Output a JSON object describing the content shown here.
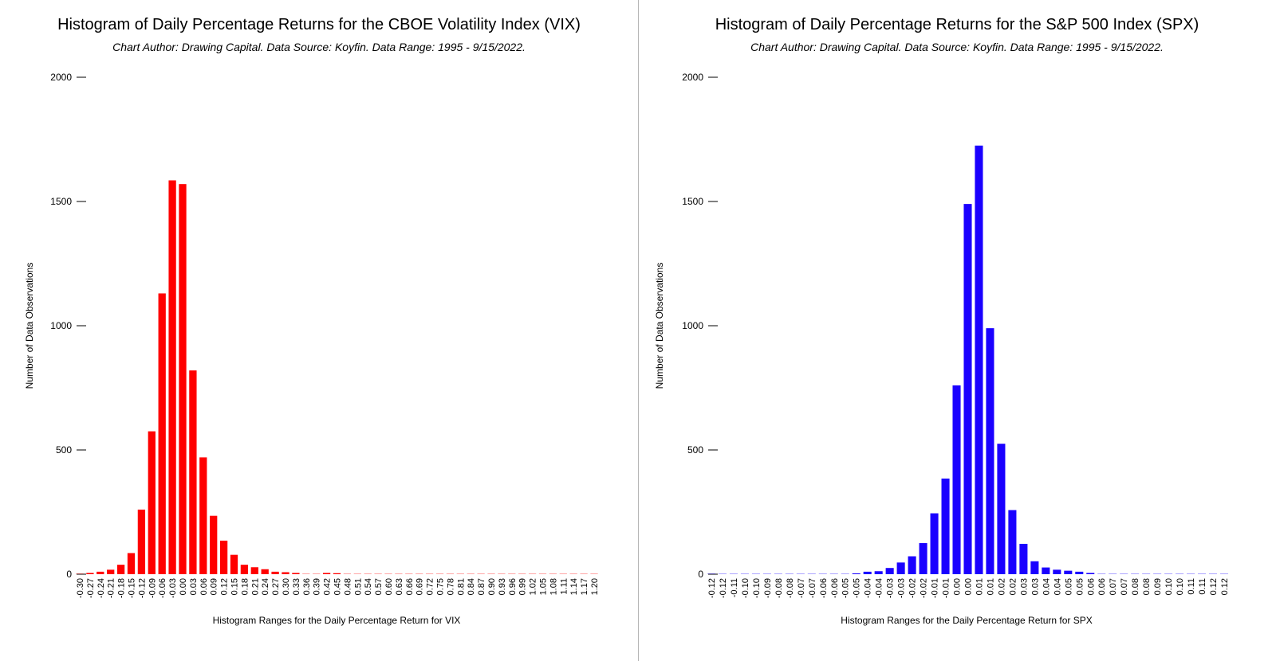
{
  "colors": {
    "vix_bar": "#ff0000",
    "spx_bar": "#1a00ff",
    "axis": "#000000",
    "divider": "#b5b5b5"
  },
  "chart_data": [
    {
      "type": "bar",
      "title": "Histogram of Daily Percentage Returns for the CBOE Volatility Index (VIX)",
      "subtitle": "Chart Author: Drawing Capital. Data Source: Koyfin. Data Range: 1995 - 9/15/2022.",
      "xlabel": "Histogram Ranges for the Daily Percentage Return for VIX",
      "ylabel": "Number of Data Observations",
      "ylim": [
        0,
        2000
      ],
      "yticks": [
        "2000",
        "1500",
        "1000",
        "500",
        "0"
      ],
      "grid": false,
      "color": "#ff0000",
      "categories": [
        "-0.30",
        "-0.27",
        "-0.24",
        "-0.21",
        "-0.18",
        "-0.15",
        "-0.12",
        "-0.09",
        "-0.06",
        "-0.03",
        "0.00",
        "0.03",
        "0.06",
        "0.09",
        "0.12",
        "0.15",
        "0.18",
        "0.21",
        "0.24",
        "0.27",
        "0.30",
        "0.33",
        "0.36",
        "0.39",
        "0.42",
        "0.45",
        "0.48",
        "0.51",
        "0.54",
        "0.57",
        "0.60",
        "0.63",
        "0.66",
        "0.69",
        "0.72",
        "0.75",
        "0.78",
        "0.81",
        "0.84",
        "0.87",
        "0.90",
        "0.93",
        "0.96",
        "0.99",
        "1.02",
        "1.05",
        "1.08",
        "1.11",
        "1.14",
        "1.17",
        "1.20"
      ],
      "values": [
        2,
        5,
        10,
        18,
        38,
        85,
        260,
        575,
        1130,
        1585,
        1570,
        820,
        470,
        235,
        135,
        78,
        38,
        28,
        20,
        10,
        8,
        5,
        0,
        2,
        5,
        4,
        2,
        0,
        2,
        0,
        2,
        2,
        0,
        0,
        0,
        0,
        0,
        0,
        0,
        0,
        0,
        0,
        0,
        0,
        0,
        0,
        0,
        0,
        0,
        2,
        0
      ]
    },
    {
      "type": "bar",
      "title": "Histogram of Daily Percentage Returns for the S&P 500 Index (SPX)",
      "subtitle": "Chart Author: Drawing Capital. Data Source: Koyfin. Data Range: 1995 - 9/15/2022.",
      "xlabel": "Histogram Ranges for the Daily Percentage Return for SPX",
      "ylabel": "Number of Data Observations",
      "ylim": [
        0,
        2000
      ],
      "yticks": [
        "2000",
        "1500",
        "1000",
        "500",
        "0"
      ],
      "grid": false,
      "color": "#1a00ff",
      "categories": [
        "-0.12",
        "-0.12",
        "-0.11",
        "-0.10",
        "-0.10",
        "-0.09",
        "-0.08",
        "-0.08",
        "-0.07",
        "-0.07",
        "-0.06",
        "-0.06",
        "-0.05",
        "-0.05",
        "-0.04",
        "-0.04",
        "-0.03",
        "-0.03",
        "-0.02",
        "-0.02",
        "-0.01",
        "-0.01",
        "0.00",
        "0.00",
        "0.01",
        "0.01",
        "0.02",
        "0.02",
        "0.03",
        "0.03",
        "0.04",
        "0.04",
        "0.05",
        "0.05",
        "0.06",
        "0.06",
        "0.07",
        "0.07",
        "0.08",
        "0.08",
        "0.09",
        "0.10",
        "0.10",
        "0.11",
        "0.11",
        "0.12",
        "0.12"
      ],
      "values": [
        1,
        0,
        0,
        0,
        1,
        1,
        0,
        0,
        1,
        1,
        1,
        1,
        1,
        3,
        10,
        12,
        25,
        47,
        72,
        125,
        245,
        385,
        760,
        1490,
        1725,
        990,
        525,
        258,
        122,
        52,
        27,
        18,
        14,
        10,
        5,
        2,
        2,
        2,
        0,
        0,
        0,
        1,
        0,
        0,
        1,
        0,
        1
      ]
    }
  ]
}
